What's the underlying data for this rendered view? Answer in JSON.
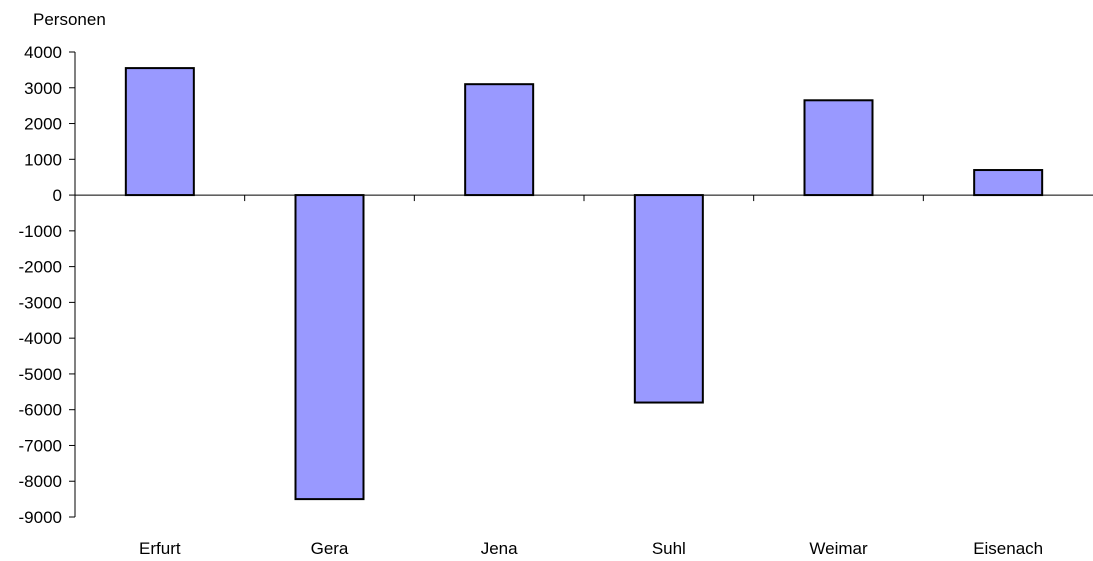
{
  "chart_data": {
    "type": "bar",
    "ylabel": "Personen",
    "xlabel": "",
    "categories": [
      "Erfurt",
      "Gera",
      "Jena",
      "Suhl",
      "Weimar",
      "Eisenach"
    ],
    "values": [
      3550,
      -8500,
      3100,
      -5800,
      2650,
      700
    ],
    "ylim": [
      -9000,
      4000
    ],
    "yticks": [
      4000,
      3000,
      2000,
      1000,
      0,
      -1000,
      -2000,
      -3000,
      -4000,
      -5000,
      -6000,
      -7000,
      -8000,
      -9000
    ],
    "grid": false,
    "legend": "none",
    "colors": {
      "bar": "#9999ff",
      "bar_stroke": "#000000",
      "axis": "#000000"
    }
  }
}
